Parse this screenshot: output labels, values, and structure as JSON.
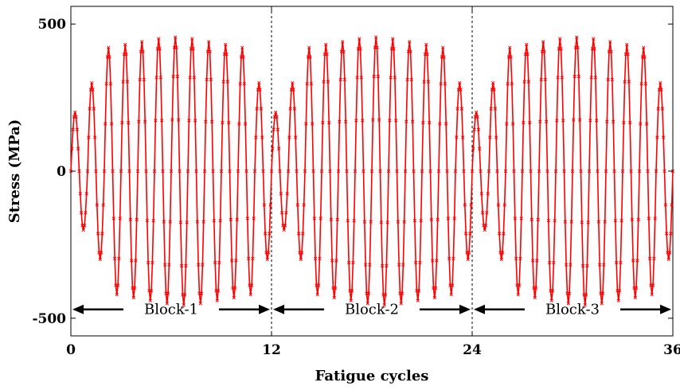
{
  "chart_data": {
    "type": "line",
    "xlabel": "Fatigue cycles",
    "ylabel": "Stress (MPa)",
    "xlim": [
      0,
      36
    ],
    "ylim": [
      -560,
      560
    ],
    "xticks": [
      {
        "value": 0,
        "label": "0"
      },
      {
        "value": 12,
        "label": "12"
      },
      {
        "value": 24,
        "label": "24"
      },
      {
        "value": 36,
        "label": "36"
      }
    ],
    "yticks": [
      {
        "value": -500,
        "label": "-500"
      },
      {
        "value": 0,
        "label": "0"
      },
      {
        "value": 500,
        "label": "500"
      }
    ],
    "vlines": [
      12,
      24
    ],
    "series_color": "#ff0000",
    "block_arrow_y": -470,
    "blocks": [
      {
        "label": "Block-1",
        "start": 0,
        "end": 12
      },
      {
        "label": "Block-2",
        "start": 12,
        "end": 24
      },
      {
        "label": "Block-3",
        "start": 24,
        "end": 36
      }
    ],
    "block_amplitudes": [
      200,
      300,
      420,
      430,
      440,
      450,
      455,
      450,
      440,
      430,
      420,
      300
    ],
    "cycles_per_block": 12,
    "grid": false
  }
}
